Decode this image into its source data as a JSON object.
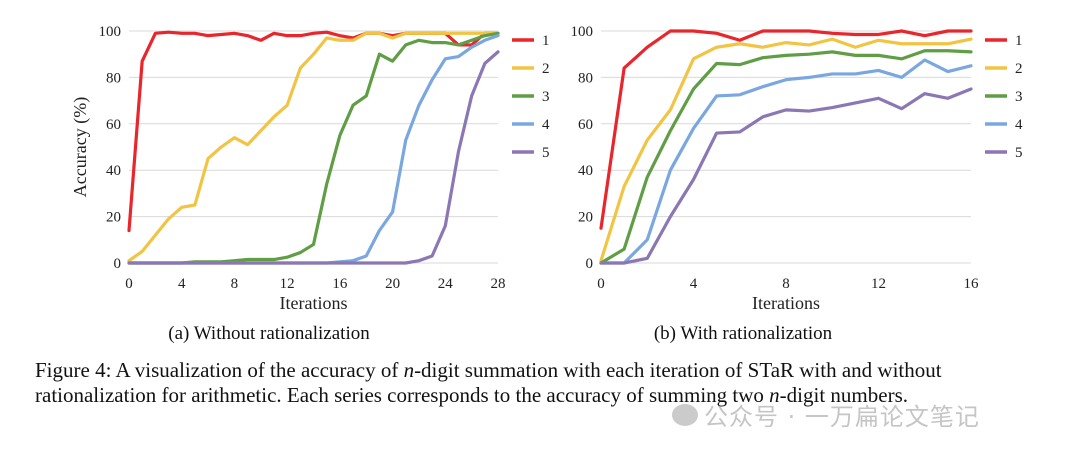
{
  "chart_data": [
    {
      "type": "line",
      "title": "",
      "subcaption": "(a) Without rationalization",
      "xlabel": "Iterations",
      "ylabel": "Accuracy (%)",
      "xlim": [
        0,
        28
      ],
      "ylim": [
        0,
        100
      ],
      "xticks": [
        "0",
        "4",
        "8",
        "12",
        "16",
        "20",
        "24",
        "28"
      ],
      "yticks": [
        "0",
        "20",
        "40",
        "60",
        "80",
        "100"
      ],
      "grid": "horizontal",
      "legend": "right",
      "x": [
        0,
        1,
        2,
        3,
        4,
        5,
        6,
        7,
        8,
        9,
        10,
        11,
        12,
        13,
        14,
        15,
        16,
        17,
        18,
        19,
        20,
        21,
        22,
        23,
        24,
        25,
        26,
        27,
        28
      ],
      "series": [
        {
          "name": "1",
          "color": "#e8262c",
          "values": [
            14,
            87,
            99,
            99.5,
            99,
            99,
            98,
            98.5,
            99,
            98,
            96,
            99,
            98,
            98,
            99,
            99.5,
            98,
            97,
            99,
            99,
            98,
            99,
            99,
            99,
            99,
            94,
            94,
            99,
            99
          ]
        },
        {
          "name": "2",
          "color": "#f2c444",
          "values": [
            1,
            5,
            12,
            19,
            24,
            25,
            45,
            50,
            54,
            51,
            57,
            63,
            68,
            84,
            90,
            97,
            96,
            96,
            99,
            99,
            97,
            99,
            99,
            99,
            99,
            99,
            99,
            99,
            99
          ]
        },
        {
          "name": "3",
          "color": "#5f9e44",
          "values": [
            0,
            0,
            0,
            0,
            0,
            0.5,
            0.5,
            0.5,
            1,
            1.5,
            1.5,
            1.5,
            2.5,
            4.5,
            8,
            34,
            55,
            68,
            72,
            90,
            87,
            94,
            96,
            95,
            95,
            94,
            96,
            98,
            99
          ]
        },
        {
          "name": "4",
          "color": "#7aa7e0",
          "values": [
            0,
            0,
            0,
            0,
            0,
            0,
            0,
            0,
            0,
            0,
            0,
            0,
            0,
            0,
            0,
            0,
            0.5,
            1,
            3,
            14,
            22,
            53,
            68,
            79,
            88,
            89,
            93,
            96,
            98
          ]
        },
        {
          "name": "5",
          "color": "#8b77b4",
          "values": [
            0,
            0,
            0,
            0,
            0,
            0,
            0,
            0,
            0,
            0,
            0,
            0,
            0,
            0,
            0,
            0,
            0,
            0,
            0,
            0,
            0,
            0,
            1,
            3,
            16,
            48,
            72,
            86,
            91
          ]
        }
      ]
    },
    {
      "type": "line",
      "title": "",
      "subcaption": "(b) With rationalization",
      "xlabel": "Iterations",
      "ylabel": "",
      "xlim": [
        0,
        16
      ],
      "ylim": [
        0,
        100
      ],
      "xticks": [
        "0",
        "4",
        "8",
        "12",
        "16"
      ],
      "yticks": [
        "0",
        "20",
        "40",
        "60",
        "80",
        "100"
      ],
      "grid": "horizontal",
      "legend": "right",
      "x": [
        0,
        1,
        2,
        3,
        4,
        5,
        6,
        7,
        8,
        9,
        10,
        11,
        12,
        13,
        14,
        15,
        16
      ],
      "series": [
        {
          "name": "1",
          "color": "#e8262c",
          "values": [
            15,
            84,
            93,
            100,
            100,
            99,
            96,
            100,
            100,
            100,
            99,
            98.5,
            98.5,
            100,
            98,
            100,
            100
          ]
        },
        {
          "name": "2",
          "color": "#f2c444",
          "values": [
            1,
            33,
            53,
            66,
            88,
            93,
            94.5,
            93,
            95,
            94,
            96.5,
            93,
            96,
            94.5,
            94.5,
            94.5,
            96.5
          ]
        },
        {
          "name": "3",
          "color": "#5f9e44",
          "values": [
            0,
            6,
            37,
            57,
            75,
            86,
            85.5,
            88.5,
            89.5,
            90,
            91,
            89.5,
            89.5,
            88,
            91.5,
            91.5,
            91
          ]
        },
        {
          "name": "4",
          "color": "#7aa7e0",
          "values": [
            0,
            0,
            10,
            40,
            58,
            72,
            72.5,
            76,
            79,
            80,
            81.5,
            81.5,
            83,
            80,
            87.5,
            82.5,
            85
          ]
        },
        {
          "name": "5",
          "color": "#8b77b4",
          "values": [
            0,
            0,
            2,
            20,
            36,
            56,
            56.5,
            63,
            66,
            65.5,
            67,
            69,
            71,
            66.5,
            73,
            71,
            75
          ]
        }
      ]
    }
  ],
  "caption": {
    "prefix": "Figure 4: A visualization of the accuracy of ",
    "n1": "n",
    "mid": "-digit summation with each iteration of STaR with and without rationalization for arithmetic. Each series corresponds to the accuracy of summing two ",
    "n2": "n",
    "suffix": "-digit numbers."
  },
  "watermark": "公众号 · 一万扁论文笔记"
}
